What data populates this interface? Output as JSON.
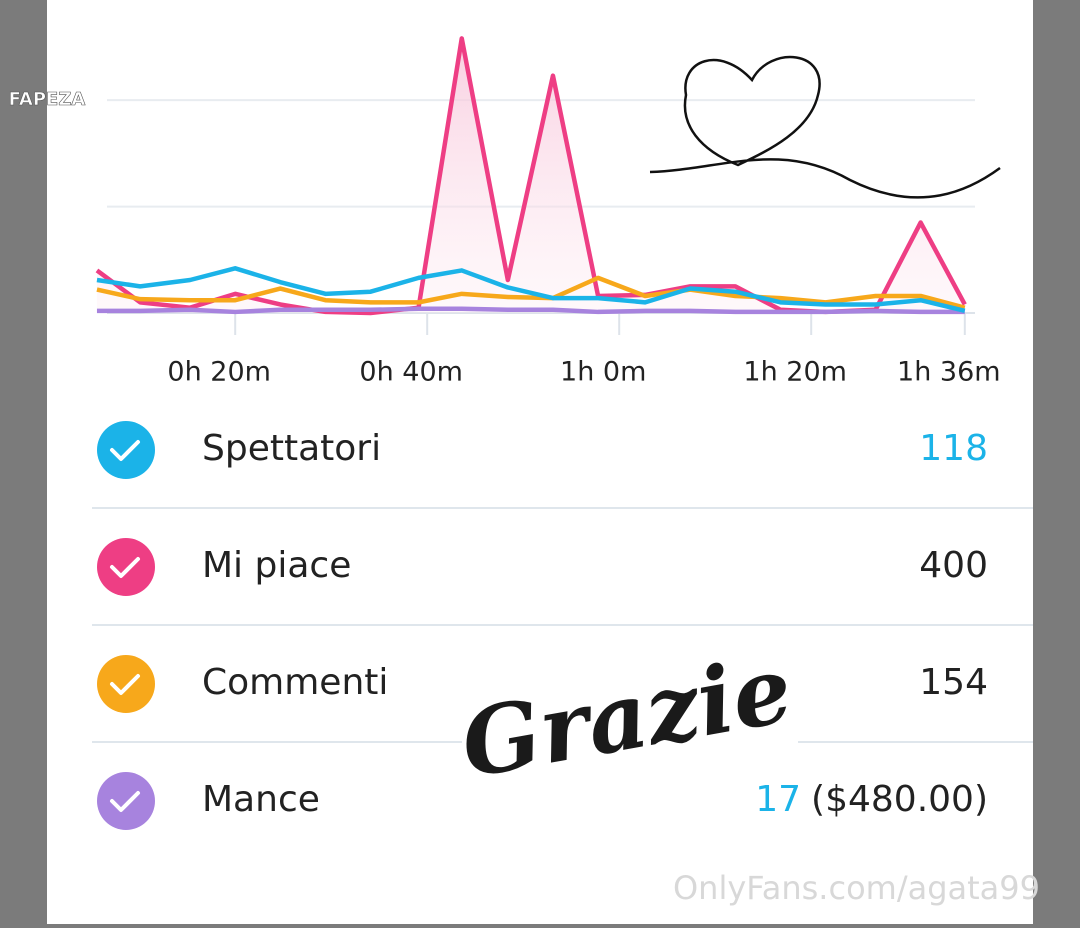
{
  "watermark": "FAPEZA",
  "chart_data": {
    "type": "line",
    "x": [
      5.6,
      10.1,
      15.3,
      20,
      24.7,
      29.4,
      34.1,
      39.1,
      43.6,
      48.4,
      53.1,
      57.8,
      62.7,
      67.4,
      72.1,
      76.8,
      81.5,
      86.7,
      91.4,
      96
    ],
    "xlim": [
      0.5,
      98
    ],
    "xticks": [
      {
        "value": 20,
        "label": "0h 20m"
      },
      {
        "value": 40,
        "label": "0h 40m"
      },
      {
        "value": 60,
        "label": "1h 0m"
      },
      {
        "value": 80,
        "label": "1h 20m"
      },
      {
        "value": 96,
        "label": "1h 36m"
      }
    ],
    "ylim": [
      0,
      28
    ],
    "yticks": [
      0,
      10,
      20
    ],
    "grid": true,
    "series": [
      {
        "name": "Spettatori",
        "color": "#1bb3e8",
        "values": [
          3.1,
          2.5,
          3.1,
          4.2,
          2.9,
          1.8,
          2.0,
          3.3,
          4.0,
          2.4,
          1.4,
          1.4,
          1.0,
          2.3,
          2.0,
          1.0,
          0.8,
          0.8,
          1.2,
          0.2
        ]
      },
      {
        "name": "Mi piace",
        "color": "#ee3e84",
        "values": [
          4.0,
          1.0,
          0.5,
          1.8,
          0.8,
          0.1,
          0,
          0.5,
          25.8,
          3.1,
          22.3,
          1.6,
          1.7,
          2.5,
          2.5,
          0.3,
          0.1,
          0.3,
          8.5,
          0.8
        ]
      },
      {
        "name": "Commenti",
        "color": "#f7a81b",
        "values": [
          2.2,
          1.3,
          1.2,
          1.2,
          2.3,
          1.2,
          1.0,
          1.0,
          1.8,
          1.5,
          1.4,
          3.3,
          1.6,
          2.2,
          1.6,
          1.4,
          1.0,
          1.6,
          1.6,
          0.5
        ]
      },
      {
        "name": "Mance",
        "color": "#a783de",
        "values": [
          0.2,
          0.2,
          0.3,
          0.1,
          0.3,
          0.3,
          0.3,
          0.4,
          0.4,
          0.3,
          0.3,
          0.1,
          0.2,
          0.2,
          0.1,
          0.1,
          0.1,
          0.2,
          0.1,
          0.1
        ]
      }
    ]
  },
  "totals": [
    118,
    400,
    154,
    17
  ],
  "tips_amount": "($480.00)",
  "overlay_text": "Grazie",
  "footer_watermark": "OnlyFans.com/agata99"
}
